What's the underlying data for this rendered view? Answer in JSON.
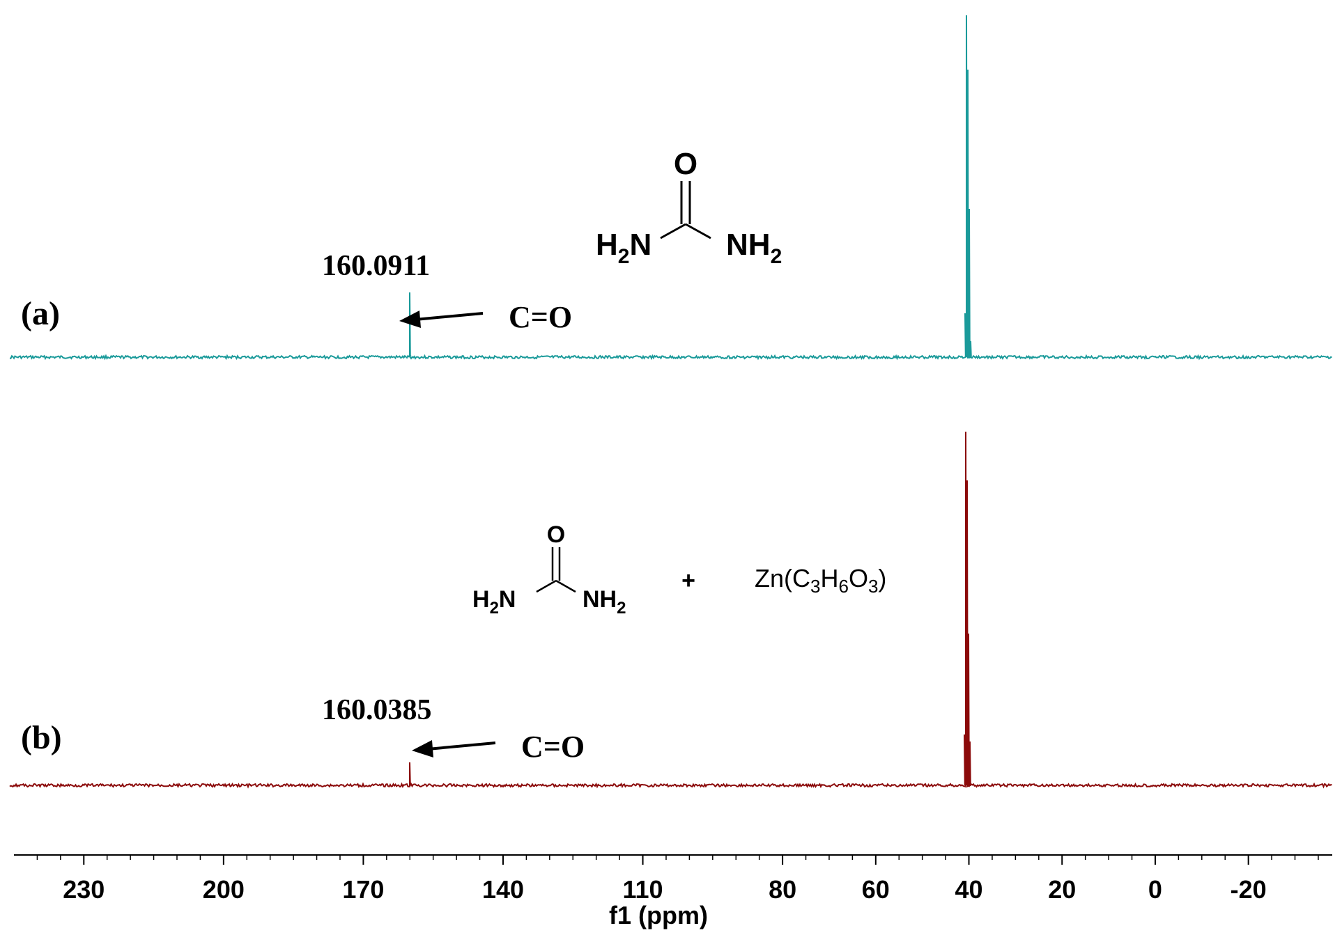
{
  "chart_data": {
    "type": "line",
    "xlabel": "f1 (ppm)",
    "xlim": [
      245,
      -38
    ],
    "x_reversed": true,
    "x_ticks": [
      230,
      200,
      170,
      140,
      110,
      80,
      60,
      40,
      20,
      0,
      -20
    ],
    "tick_labels": [
      "230",
      "200",
      "170",
      "140",
      "110",
      "80",
      "60",
      "40",
      "20",
      "0",
      "-20"
    ],
    "series": [
      {
        "panel": "(a)",
        "color": "#1a9a9a",
        "peaks": [
          {
            "x": 160.0911,
            "label": "160.0911",
            "annotation": "C=O"
          },
          {
            "x": 40,
            "label": ""
          }
        ]
      },
      {
        "panel": "(b)",
        "color": "#8b0a0a",
        "peaks": [
          {
            "x": 160.0385,
            "label": "160.0385",
            "annotation": "C=O"
          },
          {
            "x": 40,
            "label": ""
          }
        ]
      }
    ],
    "structures": {
      "urea": {
        "oxygen": "O",
        "left_amine": "H",
        "left_sub": "2",
        "left_n": "N",
        "right_n": "NH",
        "right_sub": "2"
      },
      "plus": "+",
      "zinc_salt": {
        "zn": "Zn(C",
        "s1": "3",
        "h": "H",
        "s2": "6",
        "o": "O",
        "s3": "3",
        "close": ")"
      }
    }
  }
}
